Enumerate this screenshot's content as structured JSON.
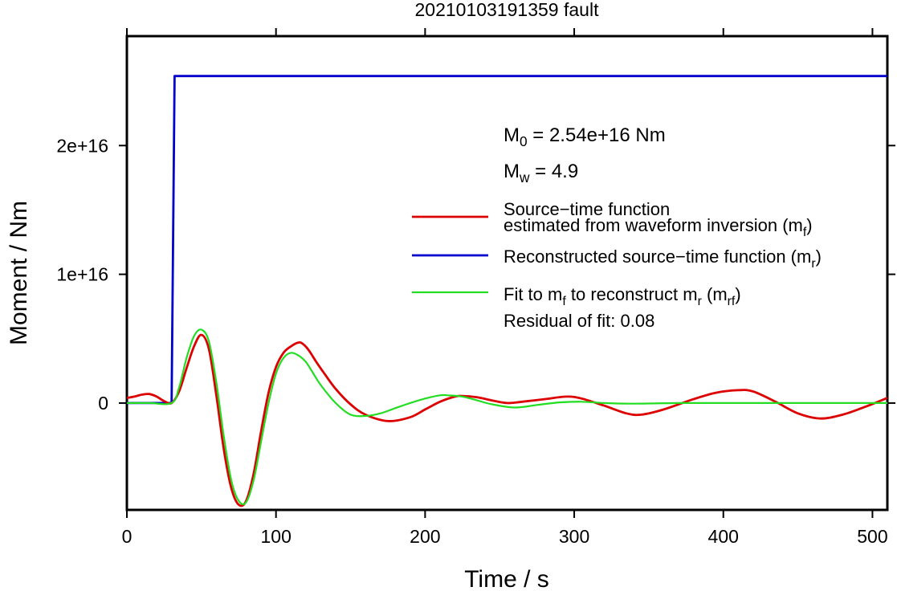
{
  "chart_data": {
    "type": "line",
    "title": "20210103191359 fault",
    "xlabel": "Time / s",
    "ylabel": "Moment / Nm",
    "xlim": [
      0,
      510
    ],
    "ylim": [
      -8300000000000000.0,
      2.85e+16
    ],
    "x_ticks": [
      0,
      100,
      200,
      300,
      400,
      500
    ],
    "x_tick_labels": [
      "0",
      "100",
      "200",
      "300",
      "400",
      "500"
    ],
    "y_ticks": [
      0,
      1e+16,
      2e+16
    ],
    "y_tick_labels": [
      "0",
      "1e+16",
      "2e+16"
    ],
    "grid": false,
    "legend_placement": "right",
    "annotations": {
      "m0": {
        "base": "M",
        "sub": "0",
        "rest": " = 2.54e+16 Nm"
      },
      "mw": {
        "base": "M",
        "sub": "w",
        "rest": " = 4.9"
      },
      "residual": "Residual of fit: 0.08"
    },
    "legend": [
      {
        "color": "#dd0000",
        "width": 2.8,
        "parts": [
          {
            "lines": [
              "Source−time function"
            ]
          },
          {
            "text": "estimated from waveform inversion (m",
            "sub": "f",
            "tail": ")"
          }
        ]
      },
      {
        "color": "#0000cc",
        "width": 2.8,
        "parts": [
          {
            "text": "Reconstructed source−time function (m",
            "sub": "r",
            "tail": ")"
          }
        ]
      },
      {
        "color": "#22dd22",
        "width": 2.2,
        "parts": [
          {
            "text": "Fit to m",
            "sub": "f",
            "mid": " to reconstruct m",
            "sub2": "r",
            "mid2": " (m",
            "sub3": "rf",
            "tail": ")"
          }
        ]
      }
    ],
    "series": [
      {
        "color": "#0000cc",
        "x": [
          0,
          30,
          32,
          510
        ],
        "y": [
          0,
          0,
          2.54e+16,
          2.54e+16
        ]
      },
      {
        "color": "#dd0000",
        "x": [
          0,
          5,
          10,
          15,
          20,
          25,
          30,
          35,
          40,
          45,
          50,
          55,
          60,
          65,
          70,
          75,
          80,
          85,
          90,
          95,
          100,
          105,
          110,
          115,
          118,
          122,
          127,
          133,
          140,
          150,
          160,
          175,
          190,
          200,
          210,
          220,
          225,
          235,
          245,
          255,
          265,
          280,
          295,
          305,
          320,
          335,
          345,
          360,
          380,
          395,
          410,
          420,
          435,
          450,
          465,
          480,
          495,
          510
        ],
        "y": [
          400000000000000.0,
          500000000000000.0,
          650000000000000.0,
          700000000000000.0,
          500000000000000.0,
          150000000000000.0,
          0.0,
          900000000000000.0,
          2700000000000000.0,
          4400000000000000.0,
          5300000000000000.0,
          4200000000000000.0,
          600000000000000.0,
          -3600000000000000.0,
          -6600000000000000.0,
          -7900000000000000.0,
          -7600000000000000.0,
          -5500000000000000.0,
          -2200000000000000.0,
          800000000000000.0,
          2800000000000000.0,
          3900000000000000.0,
          4400000000000000.0,
          4700000000000000.0,
          4600000000000000.0,
          4100000000000000.0,
          3200000000000000.0,
          2200000000000000.0,
          1100000000000000.0,
          -100000000000000.0,
          -900000000000000.0,
          -1400000000000000.0,
          -1100000000000000.0,
          -500000000000000.0,
          100000000000000.0,
          500000000000000.0,
          550000000000000.0,
          450000000000000.0,
          200000000000000.0,
          0.0,
          100000000000000.0,
          300000000000000.0,
          500000000000000.0,
          350000000000000.0,
          -200000000000000.0,
          -800000000000000.0,
          -900000000000000.0,
          -500000000000000.0,
          300000000000000.0,
          800000000000000.0,
          1000000000000000.0,
          900000000000000.0,
          100000000000000.0,
          -800000000000000.0,
          -1200000000000000.0,
          -900000000000000.0,
          -300000000000000.0,
          400000000000000.0
        ]
      },
      {
        "color": "#22dd22",
        "x": [
          0,
          15,
          30,
          35,
          40,
          45,
          50,
          55,
          60,
          65,
          70,
          75,
          80,
          85,
          90,
          95,
          100,
          105,
          110,
          115,
          120,
          125,
          130,
          140,
          150,
          160,
          170,
          180,
          190,
          200,
          210,
          215,
          225,
          235,
          245,
          260,
          275,
          290,
          305,
          320,
          340,
          370,
          400,
          450,
          510
        ],
        "y": [
          0,
          0,
          0,
          1200000000000000.0,
          3500000000000000.0,
          5200000000000000.0,
          5700000000000000.0,
          4800000000000000.0,
          1600000000000000.0,
          -2600000000000000.0,
          -6000000000000000.0,
          -7600000000000000.0,
          -7700000000000000.0,
          -6000000000000000.0,
          -3000000000000000.0,
          0.0,
          2300000000000000.0,
          3500000000000000.0,
          3900000000000000.0,
          3700000000000000.0,
          3200000000000000.0,
          2300000000000000.0,
          1400000000000000.0,
          0.0,
          -900000000000000.0,
          -1000000000000000.0,
          -800000000000000.0,
          -400000000000000.0,
          0.0,
          350000000000000.0,
          600000000000000.0,
          600000000000000.0,
          500000000000000.0,
          200000000000000.0,
          -100000000000000.0,
          -350000000000000.0,
          -150000000000000.0,
          50000000000000.0,
          100000000000000.0,
          0.0,
          -50000000000000.0,
          0.0,
          0.0,
          0.0,
          0.0
        ]
      }
    ]
  }
}
